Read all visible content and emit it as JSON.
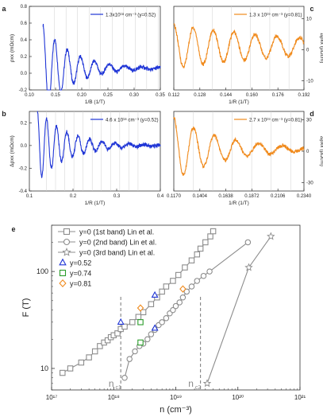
{
  "chart_data": [
    {
      "panel": "a",
      "type": "line",
      "ylabel": "ρxx (mΩcm)",
      "xlabel": "1/B (1/T)",
      "legend": "1.3x10¹⁸ cm⁻³ (y=0.52)",
      "color": "#1f35d6",
      "xlim": [
        0.1,
        0.35
      ],
      "ylim": [
        -0.2,
        0.8
      ],
      "xticks": [
        "0.10",
        "0.15",
        "0.20",
        "0.25",
        "0.30",
        "0.35"
      ],
      "yticks": [
        "-0.2",
        "0.0",
        "0.2",
        "0.4",
        "0.6",
        "0.8"
      ],
      "curve": {
        "x0": 0.126,
        "x1": 0.35,
        "period": 0.022,
        "amp0": 0.52,
        "decay": 0.055,
        "offset": 0.06,
        "slope": -0.02
      }
    },
    {
      "panel": "b",
      "type": "line",
      "ylabel": "Δρxx (mΩcm)",
      "xlabel": "1/R (1/T)",
      "legend": "4.6 x 10¹⁸ cm⁻³ (y=0.52)",
      "color": "#1f35d6",
      "xlim": [
        0.1,
        0.4
      ],
      "ylim": [
        -0.4,
        0.3
      ],
      "xticks": [
        "0.1",
        "0.2",
        "0.3",
        "0.4"
      ],
      "yticks": [
        "-0.4",
        "-0.2",
        "0.0",
        "0.2"
      ],
      "curve": {
        "x0": 0.118,
        "x1": 0.4,
        "period": 0.021,
        "amp0": 0.32,
        "decay": 0.07,
        "offset": 0.0,
        "slope": 0.0
      }
    },
    {
      "panel": "c",
      "type": "line",
      "ylabel": "Δρxx (μΩcm)",
      "xlabel": "1/R (1/T)",
      "legend": "1.3 x 10¹⁹ cm⁻³ (y=0.81)",
      "color": "#f08a1c",
      "xlim": [
        0.112,
        0.192
      ],
      "ylim": [
        -13,
        14
      ],
      "xticks": [
        "0.112",
        "0.128",
        "0.144",
        "0.160",
        "0.176",
        "0.192"
      ],
      "yticks": [
        "-10",
        "0",
        "10"
      ],
      "curve": {
        "x0": 0.112,
        "x1": 0.192,
        "period": 0.0118,
        "amp0": 7,
        "decay": 0.09,
        "offset": 1.0,
        "slope": 0.0
      }
    },
    {
      "panel": "d",
      "type": "line",
      "ylabel": "Δρxx (μΩcm)",
      "xlabel": "1/R (1/T)",
      "legend": "2.7 x 10¹⁹ cm⁻³ (y=0.81)",
      "color": "#f08a1c",
      "xlim": [
        0.117,
        0.234
      ],
      "ylim": [
        -38,
        38
      ],
      "xticks": [
        "0.1170",
        "0.1404",
        "0.1638",
        "0.1872",
        "0.2106",
        "0.2340"
      ],
      "yticks": [
        "-30",
        "0",
        "30"
      ],
      "curve": {
        "x0": 0.117,
        "x1": 0.234,
        "period": 0.0175,
        "amp0": 30,
        "decay": 0.045,
        "offset": 2.0,
        "slope": 0.0
      }
    },
    {
      "panel": "e",
      "type": "scatter",
      "xlabel": "n (cm⁻³)",
      "ylabel": "F (T)",
      "xscale": "log",
      "yscale": "log",
      "xlim": [
        1e+17,
        1e+21
      ],
      "ylim": [
        6,
        300
      ],
      "xticks": [
        "10¹⁷",
        "10¹⁸",
        "10¹⁹",
        "10²⁰",
        "10²¹"
      ],
      "yticks": [
        "10",
        "100"
      ],
      "vlines": [
        {
          "x": 1.3e+18,
          "label": "n",
          "sub": "c1"
        },
        {
          "x": 2.5e+19,
          "label": "n",
          "sub": "c2"
        }
      ],
      "series": [
        {
          "name": "y=0 (1st band) Lin et al.",
          "marker": "square",
          "color": "#8c8c8c",
          "line": true,
          "points": [
            [
              1.5e+17,
              9
            ],
            [
              2e+17,
              10
            ],
            [
              3e+17,
              11.5
            ],
            [
              4e+17,
              13
            ],
            [
              5e+17,
              15
            ],
            [
              6e+17,
              17
            ],
            [
              7e+17,
              18.5
            ],
            [
              8e+17,
              19.5
            ],
            [
              9e+17,
              21
            ],
            [
              1e+18,
              22
            ],
            [
              1.15e+18,
              23
            ],
            [
              1.3e+18,
              25.5
            ],
            [
              1.5e+18,
              27
            ],
            [
              2e+18,
              30
            ],
            [
              2.5e+18,
              34
            ],
            [
              3e+18,
              38
            ],
            [
              4e+18,
              46
            ],
            [
              5e+18,
              54
            ],
            [
              6e+18,
              62
            ],
            [
              7e+18,
              70
            ],
            [
              9e+18,
              80
            ],
            [
              1.1e+19,
              92
            ],
            [
              1.4e+19,
              110
            ],
            [
              1.8e+19,
              130
            ],
            [
              2.2e+19,
              150
            ],
            [
              2.5e+19,
              172
            ],
            [
              3e+19,
              200
            ],
            [
              3.6e+19,
              230
            ],
            [
              4e+19,
              260
            ]
          ]
        },
        {
          "name": "y=0 (2nd band) Lin et al.",
          "marker": "circle",
          "color": "#8c8c8c",
          "line": true,
          "points": [
            [
              1.5e+18,
              8
            ],
            [
              1.8e+18,
              12.5
            ],
            [
              2.2e+18,
              15
            ],
            [
              2.6e+18,
              17
            ],
            [
              3e+18,
              18
            ],
            [
              3.5e+18,
              20
            ],
            [
              4e+18,
              22.5
            ],
            [
              4.6e+18,
              25
            ],
            [
              5.3e+18,
              28
            ],
            [
              6e+18,
              30
            ],
            [
              7e+18,
              33
            ],
            [
              8e+18,
              37
            ],
            [
              9e+18,
              40
            ],
            [
              1e+19,
              44
            ],
            [
              1.15e+19,
              48
            ],
            [
              1.3e+19,
              54
            ],
            [
              1.5e+19,
              62
            ],
            [
              1.8e+19,
              70
            ],
            [
              2.2e+19,
              80
            ],
            [
              2.8e+19,
              90
            ],
            [
              3.5e+19,
              100
            ],
            [
              1.45e+20,
              200
            ]
          ]
        },
        {
          "name": "y=0 (3rd band) Lin et al.",
          "marker": "star",
          "color": "#8c8c8c",
          "line": true,
          "points": [
            [
              3.2e+19,
              7
            ],
            [
              1.5e+20,
              110
            ],
            [
              3.4e+20,
              230
            ]
          ]
        },
        {
          "name": "y=0.52",
          "marker": "triangle",
          "color": "#1f35d6",
          "line": false,
          "points": [
            [
              1.3e+18,
              30
            ],
            [
              4.6e+18,
              26
            ],
            [
              4.6e+18,
              57
            ]
          ]
        },
        {
          "name": "y=0.74",
          "marker": "square",
          "color": "#2a9c2a",
          "line": false,
          "points": [
            [
              2.7e+18,
              18.5
            ],
            [
              2.7e+18,
              30
            ]
          ]
        },
        {
          "name": "y=0.81",
          "marker": "diamond",
          "color": "#f08a1c",
          "line": false,
          "points": [
            [
              2.7e+18,
              42
            ],
            [
              1.3e+19,
              66
            ]
          ]
        }
      ]
    }
  ],
  "labels": {
    "a": "a",
    "b": "b",
    "c": "c",
    "d": "d",
    "e": "e"
  }
}
